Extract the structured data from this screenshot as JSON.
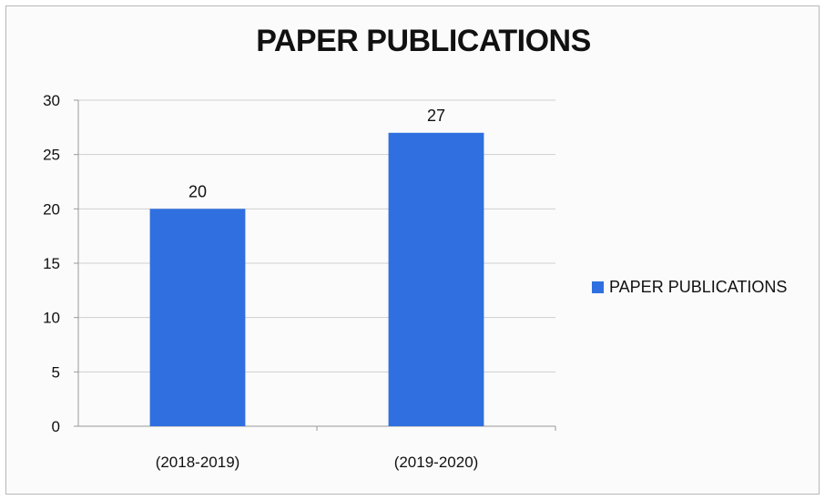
{
  "chart_data": {
    "type": "bar",
    "title": "PAPER PUBLICATIONS",
    "categories": [
      "(2018-2019)",
      "(2019-2020)"
    ],
    "series": [
      {
        "name": "PAPER PUBLICATIONS",
        "values": [
          20,
          27
        ],
        "color": "#2f6fe0"
      }
    ],
    "data_labels": [
      "20",
      "27"
    ],
    "xlabel": "",
    "ylabel": "",
    "ylim": [
      0,
      30
    ],
    "yticks": [
      0,
      5,
      10,
      15,
      20,
      25,
      30
    ],
    "grid": true,
    "legend_position": "right"
  }
}
